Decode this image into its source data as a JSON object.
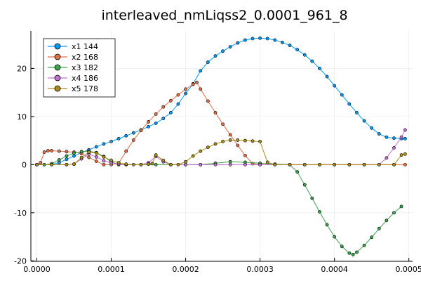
{
  "chart_data": {
    "type": "line",
    "title": "interleaved_nmLiqss2_0.0001_961_8",
    "xlabel": "",
    "ylabel": "",
    "xlim": [
      -8e-06,
      0.000505
    ],
    "ylim": [
      -20.1,
      27.8
    ],
    "x_ticks": [
      0,
      0.0001,
      0.0002,
      0.0003,
      0.0004,
      0.0005
    ],
    "x_tick_labels": [
      "0.0000",
      "0.0001",
      "0.0002",
      "0.0003",
      "0.0004",
      "0.0005"
    ],
    "y_ticks": [
      -20,
      -10,
      0,
      10,
      20
    ],
    "y_tick_labels": [
      "-20",
      "-10",
      "0",
      "10",
      "20"
    ],
    "grid": true,
    "legend_position": "top-left",
    "series": [
      {
        "name": "x1 144",
        "color": "#009af9",
        "points": [
          [
            0,
            0
          ],
          [
            1e-05,
            0
          ],
          [
            2e-05,
            0.05
          ],
          [
            3e-05,
            0.4
          ],
          [
            4e-05,
            1.1
          ],
          [
            5e-05,
            1.8
          ],
          [
            6e-05,
            2.5
          ],
          [
            7e-05,
            3.1
          ],
          [
            8e-05,
            3.7
          ],
          [
            9e-05,
            4.3
          ],
          [
            0.0001,
            4.8
          ],
          [
            0.00011,
            5.4
          ],
          [
            0.00012,
            6
          ],
          [
            0.00013,
            6.6
          ],
          [
            0.00014,
            7.2
          ],
          [
            0.00015,
            7.9
          ],
          [
            0.00016,
            8.6
          ],
          [
            0.00017,
            9.6
          ],
          [
            0.00018,
            10.8
          ],
          [
            0.00019,
            12.6
          ],
          [
            0.0002,
            14.8
          ],
          [
            0.00021,
            16.8
          ],
          [
            0.00022,
            19.5
          ],
          [
            0.00023,
            21.3
          ],
          [
            0.00024,
            22.6
          ],
          [
            0.00025,
            23.6
          ],
          [
            0.00026,
            24.5
          ],
          [
            0.00027,
            25.3
          ],
          [
            0.00028,
            25.9
          ],
          [
            0.00029,
            26.2
          ],
          [
            0.0003,
            26.3
          ],
          [
            0.00031,
            26.2
          ],
          [
            0.00032,
            25.9
          ],
          [
            0.00033,
            25.4
          ],
          [
            0.00034,
            24.8
          ],
          [
            0.00035,
            23.9
          ],
          [
            0.00036,
            22.8
          ],
          [
            0.00037,
            21.5
          ],
          [
            0.00038,
            20
          ],
          [
            0.00039,
            18.3
          ],
          [
            0.0004,
            16.4
          ],
          [
            0.00041,
            14.5
          ],
          [
            0.00042,
            12.6
          ],
          [
            0.00043,
            10.8
          ],
          [
            0.00044,
            9.1
          ],
          [
            0.00045,
            7.6
          ],
          [
            0.00046,
            6.4
          ],
          [
            0.00047,
            5.7
          ],
          [
            0.00048,
            5.5
          ],
          [
            0.00049,
            5.4
          ],
          [
            0.000495,
            5.4
          ]
        ]
      },
      {
        "name": "x2 168",
        "color": "#e26f46",
        "points": [
          [
            0,
            0
          ],
          [
            5e-06,
            0.4
          ],
          [
            1e-05,
            2.6
          ],
          [
            1.5e-05,
            2.9
          ],
          [
            2e-05,
            2.9
          ],
          [
            3e-05,
            2.8
          ],
          [
            4e-05,
            2.7
          ],
          [
            5e-05,
            2.6
          ],
          [
            6e-05,
            2.3
          ],
          [
            7e-05,
            1.5
          ],
          [
            8e-05,
            0.7
          ],
          [
            9e-05,
            0
          ],
          [
            0.0001,
            0
          ],
          [
            0.00011,
            0.3
          ],
          [
            0.00012,
            2.8
          ],
          [
            0.00013,
            5.1
          ],
          [
            0.00014,
            7.1
          ],
          [
            0.00015,
            8.9
          ],
          [
            0.00016,
            10.5
          ],
          [
            0.00017,
            12
          ],
          [
            0.00018,
            13.3
          ],
          [
            0.00019,
            14.5
          ],
          [
            0.0002,
            15.7
          ],
          [
            0.00021,
            16.7
          ],
          [
            0.000215,
            17.1
          ],
          [
            0.00022,
            15.7
          ],
          [
            0.00023,
            13.2
          ],
          [
            0.00024,
            10.8
          ],
          [
            0.00025,
            8.4
          ],
          [
            0.00026,
            6.2
          ],
          [
            0.00027,
            4
          ],
          [
            0.00028,
            1.9
          ],
          [
            0.00029,
            0.2
          ],
          [
            0.0003,
            0
          ],
          [
            0.00032,
            0
          ],
          [
            0.00034,
            0
          ],
          [
            0.00036,
            0
          ],
          [
            0.00038,
            0
          ],
          [
            0.0004,
            0
          ],
          [
            0.00042,
            0
          ],
          [
            0.00044,
            0
          ],
          [
            0.00046,
            0
          ],
          [
            0.00048,
            0
          ],
          [
            0.000495,
            0
          ]
        ]
      },
      {
        "name": "x3 182",
        "color": "#3da44d",
        "points": [
          [
            0,
            0
          ],
          [
            1e-05,
            0
          ],
          [
            2e-05,
            0.2
          ],
          [
            3e-05,
            1
          ],
          [
            4e-05,
            1.8
          ],
          [
            5e-05,
            2.4
          ],
          [
            6e-05,
            2.7
          ],
          [
            7e-05,
            2.8
          ],
          [
            8e-05,
            2.5
          ],
          [
            9e-05,
            1.7
          ],
          [
            0.0001,
            0.6
          ],
          [
            0.00011,
            0
          ],
          [
            0.00012,
            0
          ],
          [
            0.00014,
            0
          ],
          [
            0.00016,
            0
          ],
          [
            0.00018,
            0
          ],
          [
            0.0002,
            0
          ],
          [
            0.00022,
            0
          ],
          [
            0.00024,
            0.3
          ],
          [
            0.00026,
            0.6
          ],
          [
            0.00028,
            0.5
          ],
          [
            0.0003,
            0.3
          ],
          [
            0.00032,
            0.1
          ],
          [
            0.00034,
            0
          ],
          [
            0.00035,
            -1.5
          ],
          [
            0.00036,
            -4.2
          ],
          [
            0.00037,
            -7
          ],
          [
            0.00038,
            -9.8
          ],
          [
            0.00039,
            -12.5
          ],
          [
            0.0004,
            -15
          ],
          [
            0.00041,
            -17
          ],
          [
            0.00042,
            -18.4
          ],
          [
            0.000425,
            -18.7
          ],
          [
            0.00043,
            -18.2
          ],
          [
            0.00044,
            -16.8
          ],
          [
            0.00045,
            -15.1
          ],
          [
            0.00046,
            -13.3
          ],
          [
            0.00047,
            -11.6
          ],
          [
            0.00048,
            -10
          ],
          [
            0.00049,
            -8.7
          ]
        ]
      },
      {
        "name": "x4 186",
        "color": "#c271d2",
        "points": [
          [
            0,
            0
          ],
          [
            2e-05,
            0
          ],
          [
            4e-05,
            0
          ],
          [
            5e-05,
            0.1
          ],
          [
            6e-05,
            1.2
          ],
          [
            7e-05,
            2.2
          ],
          [
            8e-05,
            1.6
          ],
          [
            9e-05,
            0.8
          ],
          [
            0.0001,
            0.4
          ],
          [
            0.00011,
            0.1
          ],
          [
            0.00012,
            0
          ],
          [
            0.00014,
            0
          ],
          [
            0.00015,
            0.4
          ],
          [
            0.00016,
            1.7
          ],
          [
            0.00017,
            0.6
          ],
          [
            0.00018,
            0
          ],
          [
            0.0002,
            0
          ],
          [
            0.00022,
            0
          ],
          [
            0.00024,
            0
          ],
          [
            0.00026,
            0
          ],
          [
            0.00028,
            0
          ],
          [
            0.0003,
            0
          ],
          [
            0.00032,
            0
          ],
          [
            0.00034,
            0
          ],
          [
            0.00036,
            0
          ],
          [
            0.00038,
            0
          ],
          [
            0.0004,
            0
          ],
          [
            0.00042,
            0
          ],
          [
            0.00044,
            0
          ],
          [
            0.00046,
            0
          ],
          [
            0.00047,
            1.4
          ],
          [
            0.00048,
            3.5
          ],
          [
            0.00049,
            5.7
          ],
          [
            0.000495,
            7.2
          ]
        ]
      },
      {
        "name": "x5 178",
        "color": "#ac8d18",
        "points": [
          [
            0,
            0
          ],
          [
            2e-05,
            0
          ],
          [
            4e-05,
            0
          ],
          [
            5e-05,
            0.1
          ],
          [
            6e-05,
            1.5
          ],
          [
            7e-05,
            2.6
          ],
          [
            8e-05,
            2.4
          ],
          [
            9e-05,
            1.6
          ],
          [
            0.0001,
            0.9
          ],
          [
            0.00011,
            0.4
          ],
          [
            0.00012,
            0.1
          ],
          [
            0.00013,
            0
          ],
          [
            0.00014,
            0
          ],
          [
            0.00015,
            0.1
          ],
          [
            0.000155,
            0.2
          ],
          [
            0.00016,
            2
          ],
          [
            0.00017,
            0.9
          ],
          [
            0.00018,
            0
          ],
          [
            0.00019,
            0
          ],
          [
            0.0002,
            0.6
          ],
          [
            0.00021,
            1.8
          ],
          [
            0.00022,
            2.8
          ],
          [
            0.00023,
            3.6
          ],
          [
            0.00024,
            4.3
          ],
          [
            0.00025,
            4.8
          ],
          [
            0.00026,
            5.1
          ],
          [
            0.00027,
            5.1
          ],
          [
            0.00028,
            5
          ],
          [
            0.00029,
            4.9
          ],
          [
            0.0003,
            4.8
          ],
          [
            0.00031,
            0.5
          ],
          [
            0.00032,
            0
          ],
          [
            0.00034,
            0
          ],
          [
            0.00036,
            0
          ],
          [
            0.00038,
            0
          ],
          [
            0.0004,
            0
          ],
          [
            0.00042,
            0
          ],
          [
            0.00044,
            0
          ],
          [
            0.00046,
            0
          ],
          [
            0.00048,
            0
          ],
          [
            0.00049,
            2
          ],
          [
            0.000495,
            2.2
          ]
        ]
      }
    ]
  }
}
